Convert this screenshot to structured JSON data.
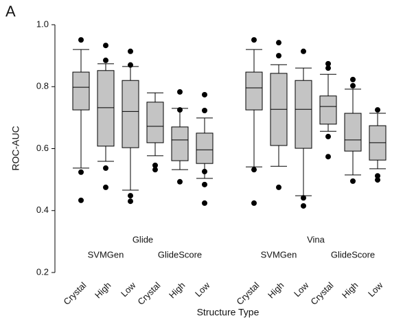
{
  "panel_label": "A",
  "chart_data": {
    "type": "box",
    "ylabel": "ROC-AUC",
    "xlabel": "Structure Type",
    "ylim": [
      0.2,
      1.0
    ],
    "yticks": [
      0.2,
      0.4,
      0.6,
      0.8,
      {
        "value": 1.0,
        "label": "1.0"
      }
    ],
    "box_color": "#c4c4c4",
    "categories": [
      "Crystal",
      "High",
      "Low",
      "Crystal",
      "High",
      "Low",
      "Crystal",
      "High",
      "Low",
      "Crystal",
      "High",
      "Low"
    ],
    "groups": [
      {
        "label": "Glide",
        "subgroups": [
          "SVMGen",
          "GlideScore"
        ]
      },
      {
        "label": "Vina",
        "subgroups": [
          "SVMGen",
          "GlideScore"
        ]
      }
    ],
    "boxes": [
      {
        "low": 0.537,
        "q1": 0.725,
        "median": 0.798,
        "q3": 0.847,
        "high": 0.92,
        "outliers": [
          0.951,
          0.524,
          0.433
        ]
      },
      {
        "low": 0.559,
        "q1": 0.608,
        "median": 0.732,
        "q3": 0.852,
        "high": 0.874,
        "outliers": [
          0.933,
          0.885,
          0.537,
          0.475
        ]
      },
      {
        "low": 0.466,
        "q1": 0.603,
        "median": 0.72,
        "q3": 0.82,
        "high": 0.865,
        "outliers": [
          0.914,
          0.87,
          0.448,
          0.43
        ]
      },
      {
        "low": 0.577,
        "q1": 0.619,
        "median": 0.672,
        "q3": 0.75,
        "high": 0.78,
        "outliers": [
          0.546,
          0.532
        ]
      },
      {
        "low": 0.532,
        "q1": 0.561,
        "median": 0.628,
        "q3": 0.67,
        "high": 0.73,
        "outliers": [
          0.783,
          0.725,
          0.493
        ]
      },
      {
        "low": 0.504,
        "q1": 0.552,
        "median": 0.596,
        "q3": 0.65,
        "high": 0.699,
        "outliers": [
          0.774,
          0.723,
          0.526,
          0.484,
          0.424
        ]
      },
      {
        "low": 0.541,
        "q1": 0.725,
        "median": 0.796,
        "q3": 0.847,
        "high": 0.92,
        "outliers": [
          0.951,
          0.532,
          0.424
        ]
      },
      {
        "low": 0.543,
        "q1": 0.61,
        "median": 0.727,
        "q3": 0.843,
        "high": 0.871,
        "outliers": [
          0.942,
          0.9,
          0.475
        ]
      },
      {
        "low": 0.448,
        "q1": 0.601,
        "median": 0.727,
        "q3": 0.82,
        "high": 0.86,
        "outliers": [
          0.914,
          0.441,
          0.415
        ]
      },
      {
        "low": 0.656,
        "q1": 0.679,
        "median": 0.736,
        "q3": 0.77,
        "high": 0.84,
        "outliers": [
          0.874,
          0.86,
          0.639,
          0.574
        ]
      },
      {
        "low": 0.515,
        "q1": 0.592,
        "median": 0.628,
        "q3": 0.714,
        "high": 0.792,
        "outliers": [
          0.823,
          0.803,
          0.495
        ]
      },
      {
        "low": 0.535,
        "q1": 0.563,
        "median": 0.619,
        "q3": 0.674,
        "high": 0.714,
        "outliers": [
          0.725,
          0.512,
          0.499
        ]
      }
    ]
  }
}
